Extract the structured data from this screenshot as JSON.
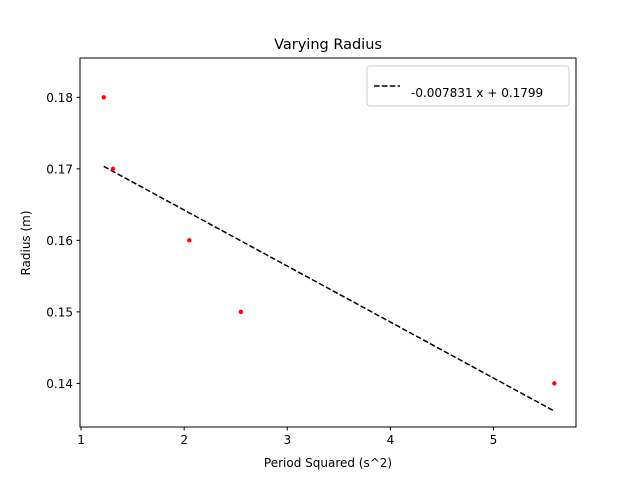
{
  "chart_data": {
    "type": "scatter",
    "title": "Varying Radius",
    "xlabel": "Period Squared (s^2)",
    "ylabel": "Radius (m)",
    "xlim": [
      0.99,
      5.8
    ],
    "ylim": [
      0.1339,
      0.1855
    ],
    "xticks": [
      1,
      2,
      3,
      4,
      5
    ],
    "yticks": [
      0.14,
      0.15,
      0.16,
      0.17,
      0.18
    ],
    "grid": false,
    "legend_position": "top-right",
    "series": [
      {
        "kind": "scatter",
        "color": "#ff0000",
        "points": [
          {
            "x": 1.22,
            "y": 0.18
          },
          {
            "x": 1.31,
            "y": 0.17
          },
          {
            "x": 2.05,
            "y": 0.16
          },
          {
            "x": 2.55,
            "y": 0.15
          },
          {
            "x": 5.59,
            "y": 0.14
          }
        ]
      },
      {
        "kind": "line",
        "name": "-0.007831 x + 0.1799",
        "color": "#000000",
        "dash": "dashed",
        "slope": -0.007831,
        "intercept": 0.1799,
        "x_range": [
          1.22,
          5.59
        ]
      }
    ]
  }
}
